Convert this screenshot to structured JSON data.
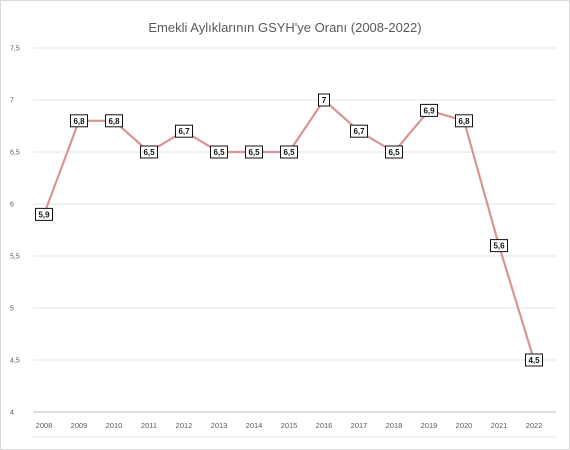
{
  "chart_data": {
    "type": "line",
    "title": "Emekli Aylıklarının GSYH'ye Oranı (2008-2022)",
    "x": [
      "2008",
      "2009",
      "2010",
      "2011",
      "2012",
      "2013",
      "2014",
      "2015",
      "2016",
      "2017",
      "2018",
      "2019",
      "2020",
      "2021",
      "2022"
    ],
    "values": [
      5.9,
      6.8,
      6.8,
      6.5,
      6.7,
      6.5,
      6.5,
      6.5,
      7.0,
      6.7,
      6.5,
      6.9,
      6.8,
      5.6,
      4.5
    ],
    "data_labels": [
      "5,9",
      "6,8",
      "6,8",
      "6,5",
      "6,7",
      "6,5",
      "6,5",
      "6,5",
      "7",
      "6,7",
      "6,5",
      "6,9",
      "6,8",
      "5,6",
      "4,5"
    ],
    "ylim": [
      4,
      7.5
    ],
    "yticks": [
      4,
      4.5,
      5,
      5.5,
      6,
      6.5,
      7,
      7.5
    ],
    "ytick_labels": [
      "4",
      "4,5",
      "5",
      "5,5",
      "6",
      "6,5",
      "7",
      "7,5"
    ],
    "grid": true,
    "line_color": "#d99594"
  }
}
